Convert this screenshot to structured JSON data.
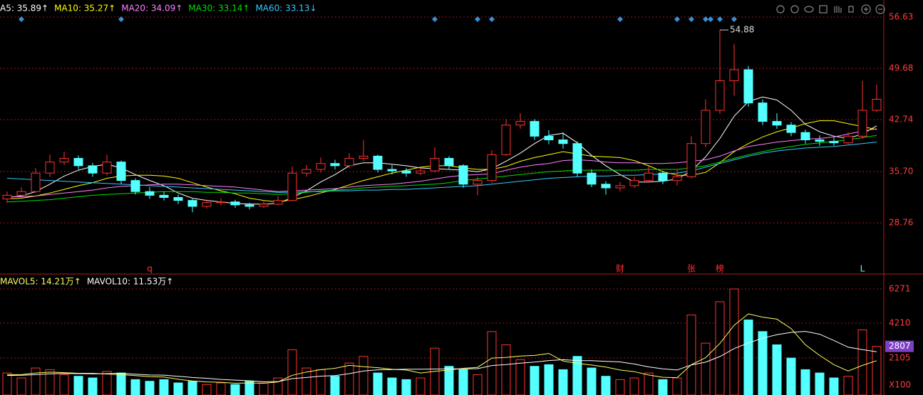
{
  "chart_data": [
    {
      "type": "candlestick",
      "ylim": [
        22.03,
        58.94
      ],
      "yticks": [
        56.63,
        49.68,
        42.74,
        {
          "value": 35.7,
          "label": "35.70"
        },
        28.76
      ],
      "candles": [
        [
          32.0,
          33.0,
          31.5,
          32.5
        ],
        [
          32.5,
          33.6,
          32.1,
          33.0
        ],
        [
          33.0,
          36.2,
          32.8,
          35.5
        ],
        [
          35.5,
          38.0,
          35.0,
          37.0
        ],
        [
          37.0,
          38.4,
          36.6,
          37.5
        ],
        [
          37.5,
          37.9,
          36.0,
          36.5
        ],
        [
          36.5,
          36.9,
          35.0,
          35.5
        ],
        [
          35.5,
          38.0,
          35.2,
          37.0
        ],
        [
          37.0,
          37.2,
          34.0,
          34.5
        ],
        [
          34.5,
          34.8,
          32.6,
          33.0
        ],
        [
          33.0,
          33.6,
          32.0,
          32.5
        ],
        [
          32.5,
          33.0,
          31.8,
          32.2
        ],
        [
          32.2,
          32.6,
          31.3,
          31.8
        ],
        [
          31.8,
          32.0,
          30.2,
          31.0
        ],
        [
          31.0,
          31.9,
          30.7,
          31.5
        ],
        [
          31.5,
          32.1,
          31.1,
          31.6
        ],
        [
          31.6,
          31.9,
          30.8,
          31.2
        ],
        [
          31.2,
          31.5,
          30.6,
          31.0
        ],
        [
          31.0,
          31.7,
          30.8,
          31.3
        ],
        [
          31.3,
          32.4,
          31.1,
          31.8
        ],
        [
          31.8,
          36.4,
          31.7,
          35.5
        ],
        [
          35.5,
          36.6,
          35.0,
          36.0
        ],
        [
          36.0,
          37.6,
          35.6,
          36.8
        ],
        [
          36.8,
          37.3,
          36.0,
          36.5
        ],
        [
          36.5,
          38.2,
          36.2,
          37.5
        ],
        [
          37.5,
          40.0,
          37.1,
          37.8
        ],
        [
          37.8,
          38.0,
          35.6,
          36.0
        ],
        [
          36.0,
          36.6,
          35.3,
          35.8
        ],
        [
          35.8,
          36.2,
          35.0,
          35.5
        ],
        [
          35.5,
          36.3,
          35.2,
          35.8
        ],
        [
          35.8,
          39.0,
          35.6,
          37.5
        ],
        [
          37.5,
          37.8,
          36.0,
          36.5
        ],
        [
          36.5,
          36.7,
          33.5,
          34.0
        ],
        [
          34.0,
          35.0,
          32.5,
          34.5
        ],
        [
          34.5,
          38.6,
          34.2,
          38.0
        ],
        [
          38.0,
          42.8,
          37.8,
          42.0
        ],
        [
          42.0,
          43.6,
          41.5,
          42.5
        ],
        [
          42.5,
          42.8,
          40.0,
          40.5
        ],
        [
          40.5,
          41.3,
          39.4,
          40.0
        ],
        [
          40.0,
          41.0,
          38.8,
          39.5
        ],
        [
          39.5,
          39.8,
          35.0,
          35.5
        ],
        [
          35.5,
          36.0,
          33.6,
          34.0
        ],
        [
          34.0,
          34.4,
          32.6,
          33.5
        ],
        [
          33.5,
          34.3,
          33.0,
          33.8
        ],
        [
          33.8,
          35.0,
          33.5,
          34.5
        ],
        [
          34.5,
          36.4,
          34.2,
          35.5
        ],
        [
          35.5,
          35.8,
          34.0,
          34.5
        ],
        [
          34.5,
          36.0,
          33.8,
          35.0
        ],
        [
          35.0,
          40.5,
          34.8,
          39.5
        ],
        [
          39.5,
          45.5,
          39.0,
          44.0
        ],
        [
          44.0,
          54.88,
          43.5,
          48.0
        ],
        [
          48.0,
          53.0,
          46.0,
          49.5
        ],
        [
          49.5,
          50.0,
          44.5,
          45.0
        ],
        [
          45.0,
          45.5,
          42.0,
          42.5
        ],
        [
          42.5,
          43.6,
          41.5,
          42.0
        ],
        [
          42.0,
          42.4,
          40.5,
          41.0
        ],
        [
          41.0,
          41.4,
          39.5,
          40.0
        ],
        [
          40.0,
          40.6,
          39.2,
          39.8
        ],
        [
          39.8,
          40.3,
          39.2,
          39.6
        ],
        [
          39.6,
          41.0,
          39.4,
          40.5
        ],
        [
          40.5,
          48.0,
          40.2,
          44.0
        ],
        [
          44.0,
          47.5,
          43.8,
          45.5
        ]
      ],
      "up_color": "#ff3232",
      "down_color": "#54ffff",
      "max_candle": 50,
      "series": [
        {
          "legend_label": "A5: 35.89↑",
          "color": "#ffffff",
          "values": [
            32.2,
            32.4,
            33.0,
            34.0,
            35.1,
            35.9,
            36.4,
            36.7,
            36.2,
            35.3,
            34.5,
            33.8,
            32.8,
            32.1,
            31.8,
            31.6,
            31.4,
            31.3,
            31.3,
            31.4,
            32.2,
            33.1,
            34.3,
            35.3,
            36.5,
            36.9,
            36.9,
            36.7,
            36.5,
            36.2,
            36.1,
            36.0,
            35.9,
            35.7,
            36.1,
            37.1,
            38.2,
            39.5,
            40.6,
            40.9,
            39.6,
            37.9,
            36.5,
            35.3,
            34.3,
            34.3,
            34.4,
            34.7,
            35.8,
            37.7,
            40.2,
            43.2,
            45.2,
            45.8,
            45.4,
            44.0,
            42.1,
            41.1,
            40.5,
            40.2,
            40.8,
            41.9
          ]
        },
        {
          "legend_label": "MA10: 35.27↑",
          "color": "#ffff00",
          "values": [
            32.0,
            32.1,
            32.4,
            32.8,
            33.3,
            33.8,
            34.2,
            34.8,
            35.1,
            35.2,
            35.2,
            35.1,
            34.8,
            34.2,
            33.6,
            33.1,
            32.7,
            32.1,
            31.8,
            31.6,
            31.9,
            32.3,
            32.8,
            33.3,
            33.9,
            34.5,
            35.0,
            35.5,
            35.9,
            36.3,
            36.5,
            36.5,
            36.2,
            36.0,
            36.0,
            36.4,
            37.1,
            37.6,
            38.0,
            38.4,
            38.1,
            37.8,
            37.7,
            37.6,
            37.2,
            36.5,
            35.7,
            35.2,
            35.2,
            35.6,
            36.9,
            38.4,
            39.5,
            40.4,
            41.1,
            41.6,
            42.2,
            42.6,
            42.6,
            42.2,
            41.8,
            41.4
          ]
        },
        {
          "legend_label": "MA20: 34.09↑",
          "color": "#ff80ff",
          "values": [
            32.3,
            32.3,
            32.4,
            32.6,
            32.8,
            33.0,
            33.2,
            33.5,
            33.7,
            33.8,
            33.9,
            34.0,
            34.0,
            33.9,
            33.8,
            33.7,
            33.6,
            33.4,
            33.2,
            33.0,
            33.1,
            33.2,
            33.3,
            33.4,
            33.6,
            33.8,
            33.9,
            34.0,
            34.2,
            34.4,
            34.7,
            35.0,
            35.2,
            35.3,
            35.4,
            35.9,
            36.3,
            36.6,
            36.8,
            37.2,
            37.3,
            37.2,
            37.0,
            36.9,
            36.9,
            36.8,
            36.8,
            36.9,
            37.1,
            37.3,
            37.8,
            38.5,
            39.1,
            39.4,
            39.7,
            39.9,
            40.1,
            40.2,
            40.4,
            40.8,
            41.2,
            41.5
          ]
        },
        {
          "legend_label": "MA30: 33.14↑",
          "color": "#00e000",
          "values": [
            31.6,
            31.7,
            31.8,
            31.9,
            32.1,
            32.3,
            32.5,
            32.6,
            32.7,
            32.8,
            32.9,
            33.0,
            33.0,
            33.0,
            32.9,
            32.9,
            32.8,
            32.8,
            32.7,
            32.6,
            32.7,
            32.9,
            33.1,
            33.2,
            33.3,
            33.5,
            33.6,
            33.7,
            33.8,
            33.9,
            34.0,
            34.2,
            34.5,
            34.7,
            34.9,
            35.1,
            35.3,
            35.5,
            35.7,
            35.8,
            35.9,
            35.9,
            35.9,
            35.9,
            35.9,
            36.0,
            36.0,
            36.0,
            36.2,
            36.5,
            37.0,
            37.5,
            38.0,
            38.4,
            38.8,
            39.1,
            39.4,
            39.6,
            39.8,
            40.0,
            40.3,
            40.6
          ]
        },
        {
          "legend_label": "MA60: 33.13↓",
          "color": "#33ccff",
          "values": [
            34.8,
            34.7,
            34.6,
            34.5,
            34.4,
            34.3,
            34.2,
            34.1,
            34.0,
            33.9,
            33.8,
            33.7,
            33.6,
            33.5,
            33.4,
            33.3,
            33.2,
            33.1,
            33.0,
            32.9,
            32.9,
            33.0,
            33.0,
            33.1,
            33.1,
            33.2,
            33.2,
            33.3,
            33.3,
            33.4,
            33.5,
            33.6,
            33.7,
            33.8,
            34.0,
            34.2,
            34.4,
            34.6,
            34.8,
            34.9,
            35.0,
            35.1,
            35.1,
            35.2,
            35.2,
            35.3,
            35.4,
            35.5,
            35.8,
            36.3,
            36.8,
            37.3,
            37.8,
            38.2,
            38.5,
            38.7,
            38.9,
            39.0,
            39.1,
            39.3,
            39.5,
            39.7
          ]
        }
      ],
      "event_markers": [
        1,
        8,
        30,
        33,
        34,
        43,
        47,
        48,
        49,
        49,
        50,
        51
      ],
      "event_color": "#3a8fd8",
      "flags": [
        {
          "candle": 10,
          "text": "q",
          "color": "#ff3232"
        },
        {
          "candle": 43,
          "text": "财",
          "color": "#ff3232"
        },
        {
          "candle": 48,
          "text": "张",
          "color": "#ff3232"
        },
        {
          "candle": 50,
          "text": "榜",
          "color": "#ff3232"
        },
        {
          "candle": 60,
          "text": "L",
          "color": "#54ffff"
        }
      ]
    },
    {
      "type": "volume",
      "ylim": [
        0,
        7045
      ],
      "yticks": [
        6271,
        4210,
        2105
      ],
      "unit_label": "X100",
      "values": [
        1200,
        900,
        1500,
        1400,
        1100,
        1000,
        900,
        1300,
        1200,
        800,
        700,
        800,
        600,
        700,
        500,
        600,
        500,
        700,
        600,
        900,
        2600,
        1500,
        1400,
        1000,
        1800,
        2200,
        1200,
        900,
        800,
        900,
        2700,
        1600,
        1400,
        1100,
        3700,
        2900,
        2000,
        1600,
        1700,
        1400,
        2200,
        1500,
        1000,
        800,
        900,
        1200,
        800,
        900,
        4700,
        3000,
        5500,
        6271,
        4400,
        3700,
        2900,
        2100,
        1400,
        1200,
        900,
        1000,
        3800,
        2807
      ],
      "highlight_color": "#7d3fc6",
      "series": [
        {
          "legend_label": "MAVOL5: 14.21万↑",
          "color": "#ffff60",
          "values": [
            1100,
            1100,
            1200,
            1250,
            1220,
            1180,
            1180,
            1140,
            1100,
            1040,
            980,
            960,
            820,
            720,
            660,
            640,
            580,
            600,
            580,
            660,
            1060,
            1260,
            1400,
            1480,
            1660,
            1580,
            1520,
            1420,
            1380,
            1200,
            1300,
            1380,
            1480,
            1540,
            2100,
            2140,
            2220,
            2260,
            2380,
            1920,
            1780,
            1680,
            1560,
            1380,
            1280,
            1080,
            940,
            920,
            1700,
            2120,
            2980,
            4080,
            4770,
            4570,
            4450,
            3880,
            2900,
            2260,
            1700,
            1320,
            1660,
            1940
          ]
        },
        {
          "legend_label": "MAVOL10: 11.53万↑",
          "color": "#ffffff",
          "values": [
            1050,
            1060,
            1100,
            1150,
            1170,
            1160,
            1150,
            1160,
            1180,
            1130,
            1080,
            1070,
            1000,
            930,
            880,
            810,
            770,
            730,
            670,
            680,
            860,
            930,
            1010,
            1040,
            1160,
            1320,
            1390,
            1410,
            1430,
            1430,
            1440,
            1450,
            1450,
            1460,
            1650,
            1710,
            1790,
            1860,
            1950,
            2000,
            1950,
            1940,
            1900,
            1870,
            1740,
            1570,
            1450,
            1380,
            1690,
            1850,
            2190,
            2670,
            3010,
            3300,
            3510,
            3650,
            3710,
            3540,
            3160,
            2760,
            2610,
            2480
          ]
        }
      ]
    }
  ]
}
